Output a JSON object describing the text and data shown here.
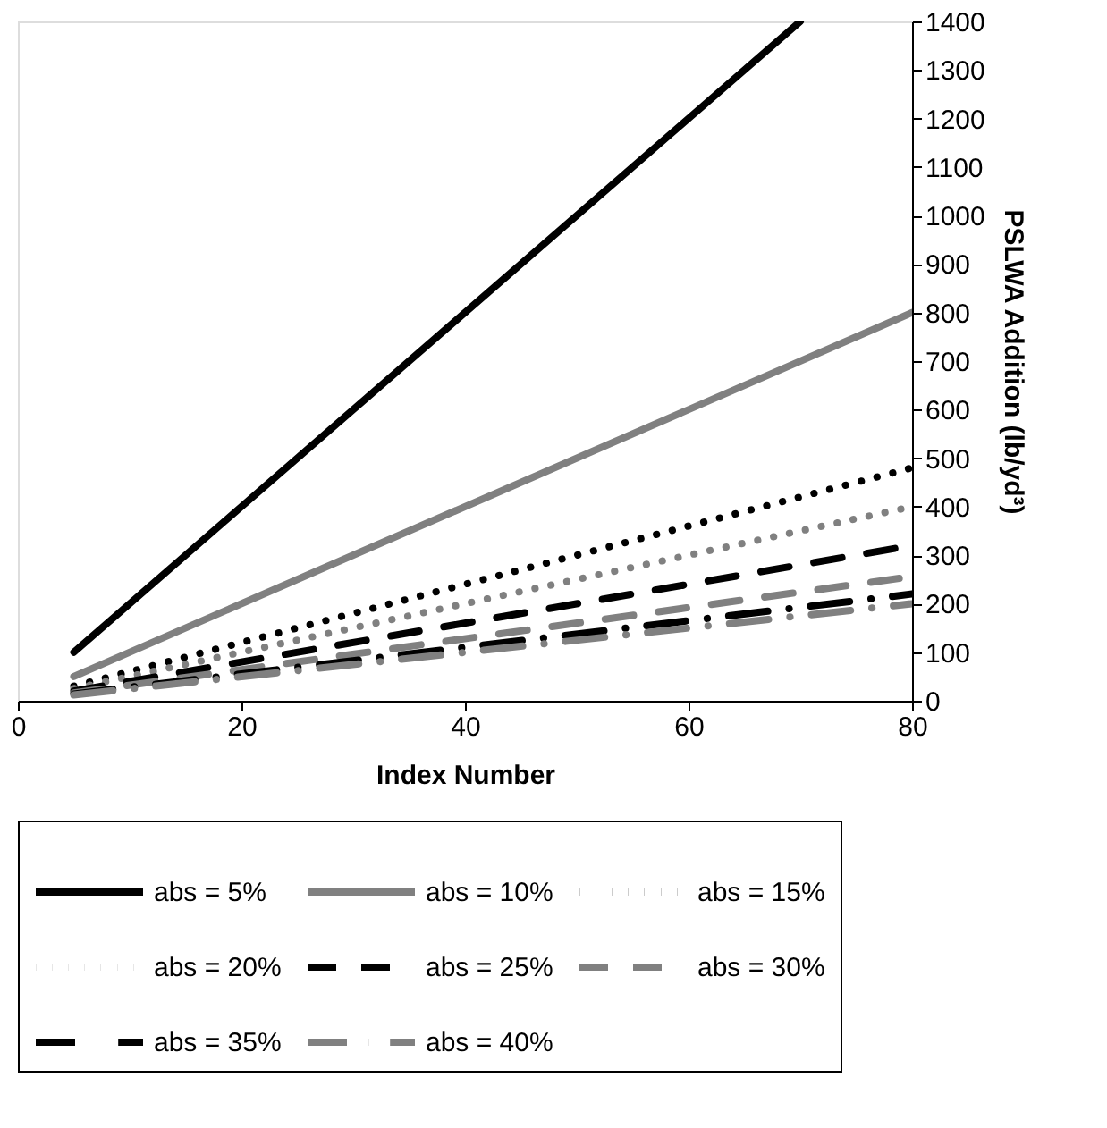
{
  "chart_data": {
    "type": "line",
    "xlabel": "Index Number",
    "ylabel": "PSLWA Addition (lb/yd³)",
    "xlim": [
      0,
      80
    ],
    "xticks": [
      0,
      20,
      40,
      60,
      80
    ],
    "ylim": [
      0,
      1400
    ],
    "yticks": [
      0,
      100,
      200,
      300,
      400,
      500,
      600,
      700,
      800,
      900,
      1000,
      1100,
      1200,
      1300,
      1400
    ],
    "grid": false,
    "legend": "bottom",
    "marker": "none",
    "series": [
      {
        "name": "abs = 5%",
        "color": "#000000",
        "line_style": "solid",
        "x": [
          5,
          70
        ],
        "values": [
          100,
          1400
        ]
      },
      {
        "name": "abs = 10%",
        "color": "#808080",
        "line_style": "solid",
        "x": [
          5,
          80
        ],
        "values": [
          50,
          800
        ]
      },
      {
        "name": "abs = 15%",
        "color": "#000000",
        "line_style": "dotted",
        "x": [
          5,
          80
        ],
        "values": [
          30,
          480
        ]
      },
      {
        "name": "abs = 20%",
        "color": "#808080",
        "line_style": "dotted",
        "x": [
          5,
          80
        ],
        "values": [
          25,
          400
        ]
      },
      {
        "name": "abs = 25%",
        "color": "#000000",
        "line_style": "dashed",
        "x": [
          5,
          80
        ],
        "values": [
          20,
          320
        ]
      },
      {
        "name": "abs = 30%",
        "color": "#808080",
        "line_style": "dashed",
        "x": [
          5,
          80
        ],
        "values": [
          16,
          256
        ]
      },
      {
        "name": "abs = 35%",
        "color": "#000000",
        "line_style": "dashdot",
        "x": [
          5,
          80
        ],
        "values": [
          14,
          220
        ]
      },
      {
        "name": "abs = 40%",
        "color": "#808080",
        "line_style": "dashdot",
        "x": [
          5,
          80
        ],
        "values": [
          12,
          200
        ]
      }
    ]
  }
}
